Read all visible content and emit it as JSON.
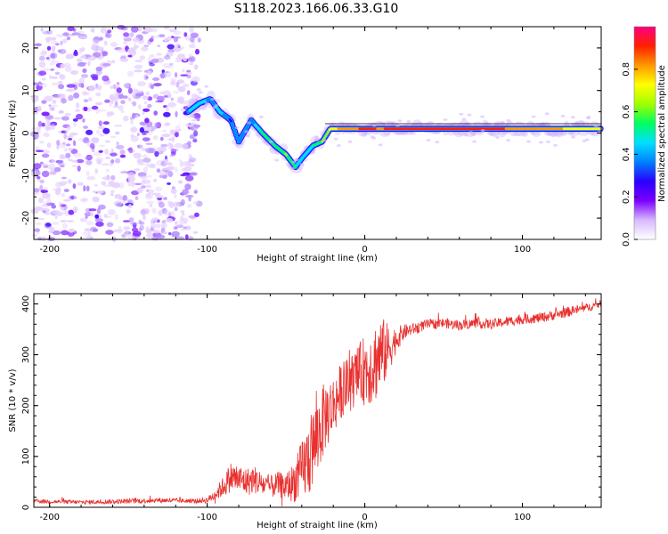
{
  "title": "S118.2023.166.06.33.G10",
  "colors": {
    "snr_line": "#e8312f",
    "axis": "#000000",
    "spectrogram_ridge": "#00e6c8"
  },
  "chart_data": [
    {
      "type": "heatmap",
      "title": "S118.2023.166.06.33.G10",
      "xlabel": "Height of straight line (km)",
      "ylabel": "Frequency (Hz)",
      "xlim": [
        -210,
        150
      ],
      "ylim": [
        -25,
        25
      ],
      "xticks": [
        -200,
        -100,
        0,
        100
      ],
      "yticks": [
        -20,
        -10,
        0,
        10,
        20
      ],
      "colorbar": {
        "label": "Normalized spectral amplitude",
        "range": [
          0,
          1
        ],
        "ticks": [
          "0.0",
          "0.2",
          "0.4",
          "0.6",
          "0.8"
        ],
        "colormap": [
          "#ffffff",
          "#d9b8ff",
          "#7b00ff",
          "#2a00ff",
          "#0080ff",
          "#00e0ff",
          "#00ff60",
          "#a0ff00",
          "#ffff00",
          "#ff9900",
          "#ff2000",
          "#ff0080"
        ]
      },
      "noise_region_km": [
        -210,
        -105
      ],
      "ridge": {
        "x": [
          -112,
          -105,
          -98,
          -92,
          -85,
          -80,
          -72,
          -65,
          -57,
          -50,
          -44,
          -40,
          -33,
          -27,
          -22,
          -15,
          -5,
          0,
          10,
          30,
          60,
          100,
          150
        ],
        "freq_hz": [
          5,
          7,
          8,
          5,
          3,
          -2,
          3,
          0,
          -3,
          -5,
          -8,
          -6,
          -3,
          -2,
          1,
          1,
          1,
          1,
          1,
          1,
          1,
          1,
          1
        ],
        "amplitude": [
          0.4,
          0.5,
          0.35,
          0.45,
          0.3,
          0.4,
          0.35,
          0.55,
          0.5,
          0.6,
          0.5,
          0.45,
          0.5,
          0.6,
          0.7,
          0.8,
          0.85,
          0.9,
          0.85,
          0.95,
          0.9,
          0.85,
          0.7
        ]
      }
    },
    {
      "type": "line",
      "xlabel": "Height of straight line (km)",
      "ylabel": "SNR (10 * v/v)",
      "xlim": [
        -210,
        150
      ],
      "ylim": [
        0,
        420
      ],
      "xticks": [
        -200,
        -100,
        0,
        100
      ],
      "yticks": [
        0,
        100,
        200,
        300,
        400
      ],
      "series": [
        {
          "name": "SNR",
          "x": [
            -210,
            -180,
            -150,
            -130,
            -110,
            -100,
            -95,
            -90,
            -85,
            -80,
            -75,
            -70,
            -65,
            -60,
            -55,
            -50,
            -45,
            -40,
            -35,
            -30,
            -25,
            -20,
            -15,
            -10,
            -5,
            0,
            5,
            10,
            15,
            20,
            25,
            30,
            40,
            50,
            60,
            70,
            80,
            90,
            100,
            110,
            120,
            130,
            140,
            150
          ],
          "y": [
            12,
            10,
            12,
            14,
            12,
            14,
            25,
            40,
            60,
            55,
            50,
            55,
            45,
            40,
            45,
            40,
            50,
            70,
            100,
            140,
            180,
            200,
            230,
            240,
            260,
            270,
            280,
            300,
            310,
            330,
            345,
            350,
            360,
            362,
            358,
            362,
            360,
            365,
            370,
            372,
            378,
            385,
            392,
            400
          ],
          "noise": [
            4,
            4,
            5,
            5,
            4,
            6,
            12,
            20,
            30,
            30,
            28,
            28,
            25,
            22,
            25,
            28,
            40,
            60,
            80,
            80,
            70,
            60,
            55,
            55,
            55,
            70,
            80,
            80,
            50,
            25,
            15,
            12,
            10,
            10,
            10,
            10,
            10,
            10,
            10,
            10,
            10,
            10,
            8,
            8
          ]
        }
      ]
    }
  ]
}
